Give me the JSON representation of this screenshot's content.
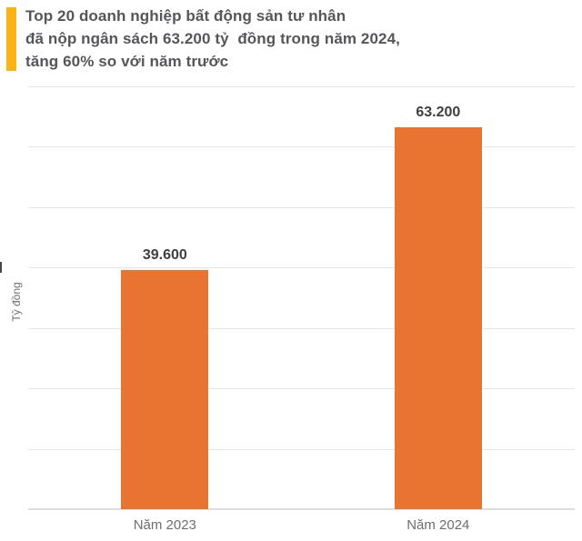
{
  "title": {
    "lines": [
      "Top 20 doanh nghiệp bất động sản tư nhân",
      "đã nộp ngân sách 63.200 tỷ  đồng trong năm 2024,",
      "tăng 60% so với năm trước"
    ]
  },
  "colors": {
    "accent": "#FCB316",
    "bar": "#E97330",
    "title_text": "#55565A",
    "value_label_text": "#3F3F3F",
    "axis_text": "#6E6E6E",
    "gridline": "#E6E6E6"
  },
  "chart_data": {
    "type": "bar",
    "categories": [
      "Năm 2023",
      "Năm 2024"
    ],
    "values": [
      39600,
      63200
    ],
    "value_labels": [
      "39.600",
      "63.200"
    ],
    "title": "Top 20 doanh nghiệp bất động sản tư nhân đã nộp ngân sách 63.200 tỷ đồng trong năm 2024, tăng 60% so với năm trước",
    "xlabel": "",
    "ylabel": "Tỷ đồng",
    "ylim": [
      0,
      70000
    ],
    "grid": true,
    "gridline_step": 10000,
    "legend": false,
    "bar_color": "#E97330"
  }
}
